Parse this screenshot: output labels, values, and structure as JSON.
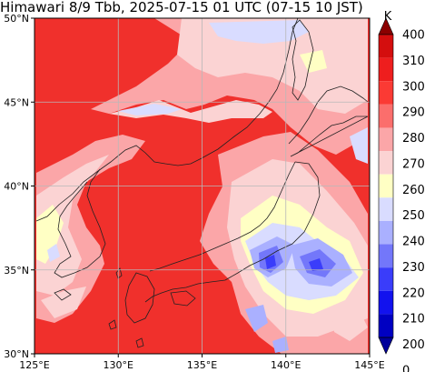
{
  "title": "Himawari 8/9 Tbb, 2025-07-15 01 UTC (07-15 10 JST)",
  "map": {
    "lon_range": [
      125,
      145
    ],
    "lat_range": [
      30,
      50
    ],
    "lon_ticks": [
      "125°E",
      "130°E",
      "135°E",
      "140°E",
      "145°E"
    ],
    "lat_ticks": [
      "50°N",
      "45°N",
      "40°N",
      "35°N",
      "30°N"
    ],
    "grid": true,
    "background_color": "#f0302c"
  },
  "colorbar": {
    "unit": "K",
    "levels": [
      "400",
      "310",
      "300",
      "290",
      "280",
      "270",
      "260",
      "250",
      "240",
      "230",
      "220",
      "210",
      "200",
      "0"
    ],
    "colors": [
      "#8b0000",
      "#d40e0e",
      "#ee1e1e",
      "#fb3a34",
      "#fb6e6c",
      "#fba6a8",
      "#fbd3d3",
      "#ffffc4",
      "#d9dcff",
      "#aab0ff",
      "#7377fa",
      "#3a3dfa",
      "#1212ee",
      "#0000c2",
      "#00009a"
    ]
  }
}
